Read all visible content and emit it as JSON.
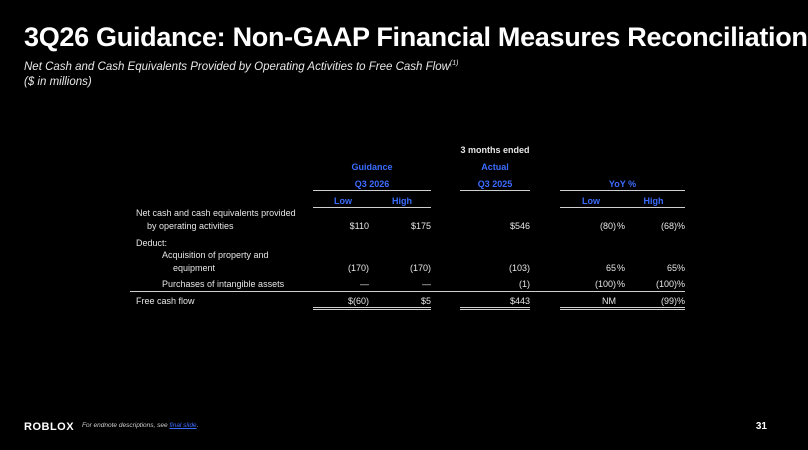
{
  "slide": {
    "title": "3Q26 Guidance: Non-GAAP Financial Measures Reconciliation",
    "subtitle_main": "Net Cash and Cash Equivalents Provided by Operating Activities to Free Cash Flow",
    "subtitle_sup": "(1)",
    "subtitle_units": "($ in millions)",
    "page_number": "31"
  },
  "table": {
    "period_header": "3 months ended",
    "guidance_label": "Guidance",
    "actual_label": "Actual",
    "guidance_period": "Q3 2026",
    "actual_period": "Q3 2025",
    "yoy_label": "YoY %",
    "low_label": "Low",
    "high_label": "High",
    "yoy_low_label": "Low",
    "yoy_high_label": "High",
    "rows": [
      {
        "label1": "Net cash and cash equivalents provided",
        "label2": "by operating activities",
        "g_low": "$110",
        "g_high": "$175",
        "actual": "$546",
        "yoy_low": "(80)",
        "yoy_low_pct": "%",
        "yoy_high": "(68)",
        "yoy_high_pct": "%"
      },
      {
        "label1": "Deduct:"
      },
      {
        "label1": "Acquisition of property and",
        "label2": "equipment",
        "g_low": "(170)",
        "g_high": "(170)",
        "actual": "(103)",
        "yoy_low": "65",
        "yoy_low_pct": "%",
        "yoy_high": "65",
        "yoy_high_pct": "%"
      },
      {
        "label1": "Purchases of intangible assets",
        "g_low": "—",
        "g_high": "—",
        "actual": "(1)",
        "yoy_low": "(100)",
        "yoy_low_pct": "%",
        "yoy_high": "(100)",
        "yoy_high_pct": "%"
      },
      {
        "label1": "Free cash flow",
        "g_low": "$(60)",
        "g_high": "$5",
        "actual": "$443",
        "yoy_low": "NM",
        "yoy_high": "(99)",
        "yoy_high_pct": "%"
      }
    ]
  },
  "footer": {
    "logo_text": "RΟBLOX",
    "note_prefix": "For endnote descriptions, see ",
    "note_link": "final slide",
    "note_suffix": "."
  },
  "colors": {
    "accent_blue": "#3b6cff",
    "background": "#000000"
  }
}
